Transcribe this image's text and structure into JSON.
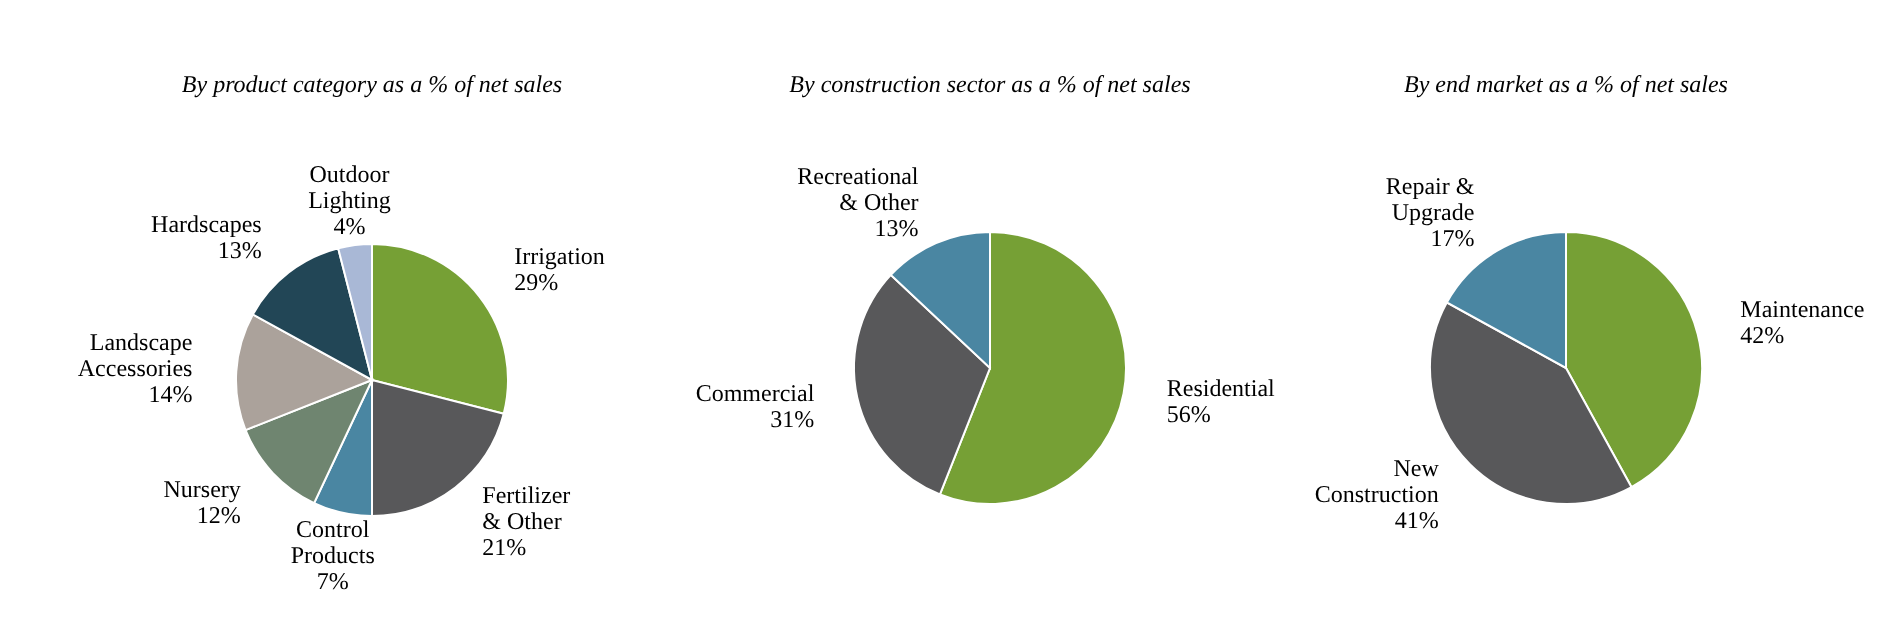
{
  "chart_data": [
    {
      "type": "pie",
      "title": "By product category as a % of net sales",
      "categories": [
        "Irrigation",
        "Fertilizer & Other",
        "Control Products",
        "Nursery",
        "Landscape Accessories",
        "Hardscapes",
        "Outdoor Lighting"
      ],
      "values": [
        29,
        21,
        7,
        12,
        14,
        13,
        4
      ],
      "value_labels": [
        "29%",
        "21%",
        "7%",
        "12%",
        "14%",
        "13%",
        "4%"
      ],
      "colors": [
        "#76a035",
        "#58585a",
        "#4a86a2",
        "#6f8570",
        "#aba29b",
        "#224656",
        "#a9b8d6"
      ],
      "legend": false
    },
    {
      "type": "pie",
      "title": "By construction sector as a % of net sales",
      "categories": [
        "Residential",
        "Commercial",
        "Recreational & Other"
      ],
      "values": [
        56,
        31,
        13
      ],
      "value_labels": [
        "56%",
        "31%",
        "13%"
      ],
      "colors": [
        "#76a035",
        "#58585a",
        "#4a86a2"
      ],
      "legend": false
    },
    {
      "type": "pie",
      "title": "By end market as a % of net sales",
      "categories": [
        "Maintenance",
        "New Construction",
        "Repair & Upgrade"
      ],
      "values": [
        42,
        41,
        17
      ],
      "value_labels": [
        "42%",
        "41%",
        "17%"
      ],
      "colors": [
        "#76a035",
        "#58585a",
        "#4a86a2"
      ],
      "legend": false
    }
  ]
}
